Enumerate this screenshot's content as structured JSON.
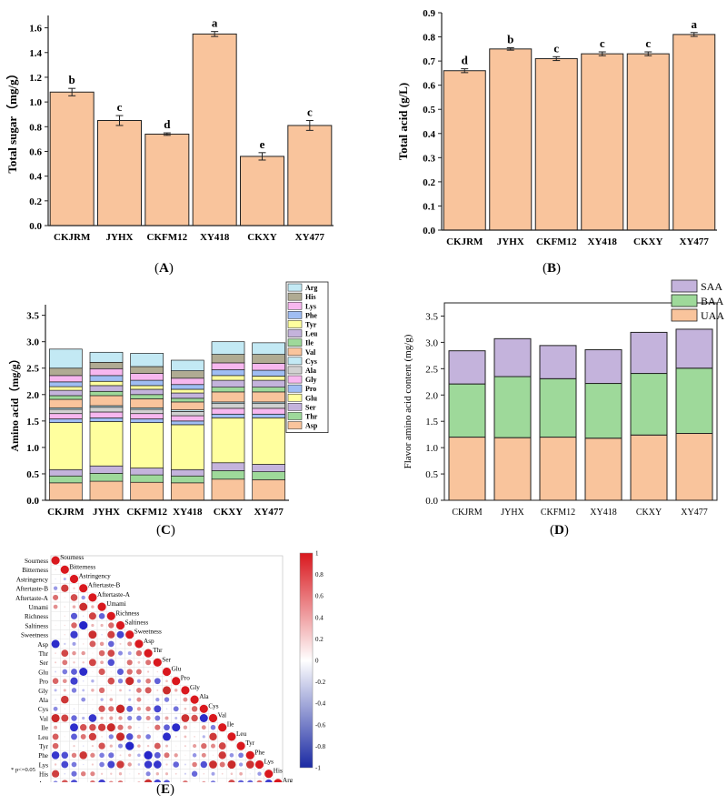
{
  "panels": {
    "A": {
      "label": "A"
    },
    "B": {
      "label": "B"
    },
    "C": {
      "label": "C"
    },
    "D": {
      "label": "D"
    },
    "E": {
      "label": "E"
    }
  },
  "chart_data": [
    {
      "id": "A",
      "type": "bar",
      "categories": [
        "CKJRM",
        "JYHX",
        "CKFM12",
        "XY418",
        "CKXY",
        "XY477"
      ],
      "values": [
        1.08,
        0.85,
        0.74,
        1.55,
        0.56,
        0.81
      ],
      "errors": [
        0.03,
        0.04,
        0.01,
        0.02,
        0.03,
        0.04
      ],
      "letters": [
        "b",
        "c",
        "d",
        "a",
        "e",
        "c"
      ],
      "ylabel": "Total sugar（mg/g）",
      "ylim": [
        0,
        1.7
      ],
      "yticks": [
        0.0,
        0.2,
        0.4,
        0.6,
        0.8,
        1.0,
        1.2,
        1.4,
        1.6
      ],
      "bar_color": "#f9c49c"
    },
    {
      "id": "B",
      "type": "bar",
      "categories": [
        "CKJRM",
        "JYHX",
        "CKFM12",
        "XY418",
        "CKXY",
        "XY477"
      ],
      "values": [
        0.66,
        0.75,
        0.71,
        0.73,
        0.73,
        0.81
      ],
      "errors": [
        0.008,
        0.005,
        0.008,
        0.008,
        0.008,
        0.008
      ],
      "letters": [
        "d",
        "b",
        "c",
        "c",
        "c",
        "a"
      ],
      "ylabel": "Total acid (g/L)",
      "ylim": [
        0,
        0.9
      ],
      "yticks": [
        0.0,
        0.1,
        0.2,
        0.3,
        0.4,
        0.5,
        0.6,
        0.7,
        0.8,
        0.9
      ],
      "bar_color": "#f9c49c"
    },
    {
      "id": "C",
      "type": "bar",
      "stacked": true,
      "categories": [
        "CKJRM",
        "JYHX",
        "CKFM12",
        "XY418",
        "CKXY",
        "XY477"
      ],
      "ylabel": "Amino acid（mg/g）",
      "ylim": [
        0,
        3.7
      ],
      "yticks": [
        0.0,
        0.5,
        1.0,
        1.5,
        2.0,
        2.5,
        3.0,
        3.5
      ],
      "series": [
        {
          "name": "Asp",
          "color": "#f9c49c",
          "values": [
            0.33,
            0.36,
            0.34,
            0.33,
            0.4,
            0.39
          ]
        },
        {
          "name": "Thr",
          "color": "#9ed99a",
          "values": [
            0.13,
            0.15,
            0.14,
            0.13,
            0.16,
            0.15
          ]
        },
        {
          "name": "Ser",
          "color": "#c4b3dc",
          "values": [
            0.12,
            0.14,
            0.13,
            0.12,
            0.15,
            0.14
          ]
        },
        {
          "name": "Glu",
          "color": "#ffff9e",
          "values": [
            0.89,
            0.84,
            0.86,
            0.85,
            0.85,
            0.88
          ]
        },
        {
          "name": "Pro",
          "color": "#9fbdf3",
          "values": [
            0.07,
            0.07,
            0.07,
            0.07,
            0.07,
            0.07
          ]
        },
        {
          "name": "Gly",
          "color": "#f7b7ef",
          "values": [
            0.1,
            0.11,
            0.1,
            0.1,
            0.11,
            0.11
          ]
        },
        {
          "name": "Ala",
          "color": "#d1d1d1",
          "values": [
            0.08,
            0.09,
            0.08,
            0.08,
            0.09,
            0.09
          ]
        },
        {
          "name": "Cys",
          "color": "#c3e9f4",
          "values": [
            0.03,
            0.03,
            0.03,
            0.03,
            0.03,
            0.03
          ]
        },
        {
          "name": "Val",
          "color": "#f9c49c",
          "values": [
            0.16,
            0.19,
            0.17,
            0.15,
            0.19,
            0.19
          ]
        },
        {
          "name": "Ile",
          "color": "#9ed99a",
          "values": [
            0.07,
            0.08,
            0.08,
            0.07,
            0.09,
            0.09
          ]
        },
        {
          "name": "Leu",
          "color": "#c4b3dc",
          "values": [
            0.1,
            0.11,
            0.1,
            0.1,
            0.13,
            0.13
          ]
        },
        {
          "name": "Tyr",
          "color": "#ffff9e",
          "values": [
            0.07,
            0.08,
            0.07,
            0.07,
            0.09,
            0.08
          ]
        },
        {
          "name": "Phe",
          "color": "#9fbdf3",
          "values": [
            0.09,
            0.11,
            0.1,
            0.09,
            0.11,
            0.11
          ]
        },
        {
          "name": "Lys",
          "color": "#f7b7ef",
          "values": [
            0.12,
            0.13,
            0.13,
            0.12,
            0.13,
            0.13
          ]
        },
        {
          "name": "His",
          "color": "#b0ab93",
          "values": [
            0.14,
            0.12,
            0.13,
            0.14,
            0.16,
            0.17
          ]
        },
        {
          "name": "Arg",
          "color": "#c3e9f4",
          "values": [
            0.36,
            0.19,
            0.25,
            0.2,
            0.24,
            0.22
          ]
        }
      ]
    },
    {
      "id": "D",
      "type": "bar",
      "stacked": true,
      "categories": [
        "CKJRM",
        "JYHX",
        "CKFM12",
        "XY418",
        "CKXY",
        "XY477"
      ],
      "ylabel": "Flavor amino acid content (mg/g)",
      "ylim": [
        0,
        3.75
      ],
      "yticks": [
        0.0,
        0.5,
        1.0,
        1.5,
        2.0,
        2.5,
        3.0,
        3.5
      ],
      "series": [
        {
          "name": "UAA",
          "color": "#f9c49c",
          "values": [
            1.2,
            1.19,
            1.2,
            1.18,
            1.24,
            1.27
          ]
        },
        {
          "name": "BAA",
          "color": "#9ed99a",
          "values": [
            1.01,
            1.16,
            1.11,
            1.04,
            1.17,
            1.24
          ]
        },
        {
          "name": "SAA",
          "color": "#c4b3dc",
          "values": [
            0.63,
            0.72,
            0.63,
            0.64,
            0.78,
            0.74
          ]
        }
      ]
    },
    {
      "id": "E",
      "type": "heatmap",
      "variables": [
        "Sourness",
        "Bitterness",
        "Astringency",
        "Aftertaste-B",
        "Aftertaste-A",
        "Umami",
        "Richness",
        "Saltiness",
        "Sweetness",
        "Asp",
        "Thr",
        "Ser",
        "Glu",
        "Pro",
        "Gly",
        "Ala",
        "Cys",
        "Val",
        "Ile",
        "Leu",
        "Tyr",
        "Phe",
        "Lys",
        "His",
        "Arg"
      ],
      "colorbar_ticks": [
        "1",
        "0.8",
        "0.6",
        "0.4",
        "0.2",
        "0",
        "-0.2",
        "-0.4",
        "-0.6",
        "-0.8",
        "-1"
      ],
      "footnote": "* p<=0.05"
    }
  ]
}
